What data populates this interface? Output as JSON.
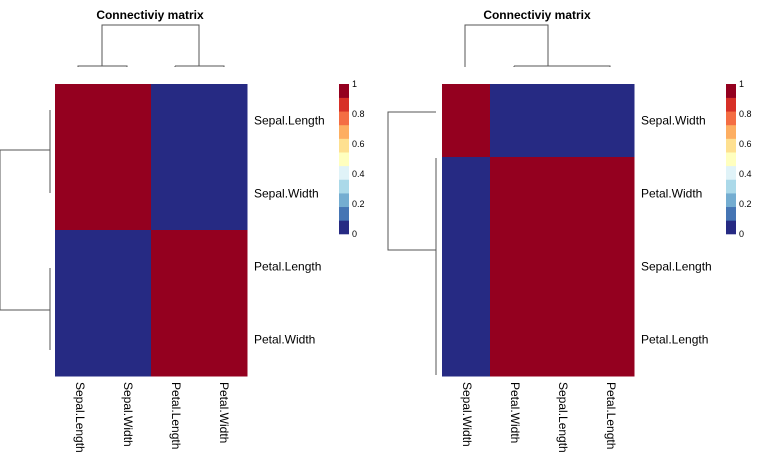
{
  "colors": {
    "scale": [
      "#313695",
      "#4575b4",
      "#74add1",
      "#abd9e9",
      "#e0f3f8",
      "#ffffbf",
      "#fee090",
      "#fdae61",
      "#f46d43",
      "#d73027",
      "#a50026"
    ],
    "background": "#ffffff",
    "dendrogram": "#555555"
  },
  "chart_data": [
    {
      "type": "heatmap",
      "title": "Connectiviy matrix",
      "rows": [
        "Sepal.Length",
        "Sepal.Width",
        "Petal.Length",
        "Petal.Width"
      ],
      "columns": [
        "Sepal.Length",
        "Sepal.Width",
        "Petal.Length",
        "Petal.Width"
      ],
      "values": [
        [
          1,
          1,
          0,
          0
        ],
        [
          1,
          1,
          0,
          0
        ],
        [
          0,
          0,
          1,
          1
        ],
        [
          0,
          0,
          1,
          1
        ]
      ],
      "legend": {
        "min": 0,
        "max": 1,
        "ticks": [
          "0",
          "0.2",
          "0.4",
          "0.6",
          "0.8",
          "1"
        ]
      },
      "dendrograms": {
        "rows": true,
        "columns": true
      }
    },
    {
      "type": "heatmap",
      "title": "Connectiviy matrix",
      "rows": [
        "Sepal.Width",
        "Petal.Width",
        "Sepal.Length",
        "Petal.Length"
      ],
      "columns": [
        "Sepal.Width",
        "Petal.Width",
        "Sepal.Length",
        "Petal.Length"
      ],
      "values": [
        [
          1,
          0,
          0,
          0
        ],
        [
          0,
          1,
          1,
          1
        ],
        [
          0,
          1,
          1,
          1
        ],
        [
          0,
          1,
          1,
          1
        ]
      ],
      "legend": {
        "min": 0,
        "max": 1,
        "ticks": [
          "0",
          "0.2",
          "0.4",
          "0.6",
          "0.8",
          "1"
        ]
      },
      "dendrograms": {
        "rows": true,
        "columns": true
      }
    }
  ]
}
